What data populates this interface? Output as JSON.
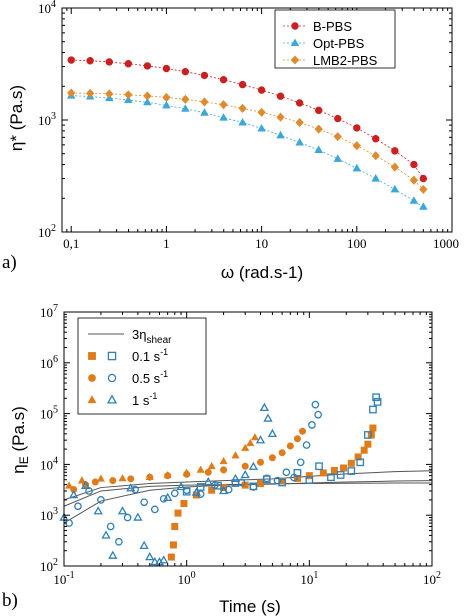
{
  "chart_data": [
    {
      "type": "line",
      "panel_label": "a)",
      "xlabel": "ω (rad.s-1)",
      "ylabel": "η* (Pa.s)",
      "xscale": "log",
      "yscale": "log",
      "xlim": [
        0.08,
        1000
      ],
      "ylim": [
        100,
        10000
      ],
      "xticks": [
        "0,1",
        "1",
        "10",
        "100",
        "1000"
      ],
      "yticks": [
        {
          "base": "10",
          "exp": "2"
        },
        {
          "base": "10",
          "exp": "3"
        },
        {
          "base": "10",
          "exp": "4"
        }
      ],
      "legend_position": "top-right",
      "x": [
        0.1,
        0.158,
        0.251,
        0.398,
        0.631,
        1.0,
        1.58,
        2.51,
        3.98,
        6.31,
        10,
        15.8,
        25.1,
        39.8,
        63.1,
        100,
        158,
        251,
        398,
        500
      ],
      "series": [
        {
          "name": "B-PBS",
          "marker": "circle",
          "color": "#cc1f1f",
          "values": [
            3430,
            3380,
            3300,
            3180,
            3040,
            2880,
            2700,
            2500,
            2290,
            2070,
            1850,
            1630,
            1420,
            1220,
            1030,
            850,
            680,
            530,
            400,
            300
          ]
        },
        {
          "name": "Opt-PBS",
          "marker": "triangle",
          "color": "#3aa8d8",
          "values": [
            1650,
            1620,
            1570,
            1510,
            1440,
            1350,
            1260,
            1160,
            1050,
            950,
            840,
            730,
            630,
            540,
            450,
            370,
            300,
            240,
            190,
            168
          ]
        },
        {
          "name": "LMB2-PBS",
          "marker": "diamond",
          "color": "#e08a2e",
          "values": [
            1740,
            1730,
            1710,
            1680,
            1640,
            1590,
            1530,
            1450,
            1370,
            1270,
            1170,
            1060,
            950,
            830,
            710,
            590,
            480,
            380,
            290,
            240
          ]
        }
      ]
    },
    {
      "type": "scatter",
      "panel_label": "b)",
      "xlabel": "Time (s)",
      "ylabel": {
        "main": "η",
        "sub": "E",
        "rest": " (Pa.s)"
      },
      "xscale": "log",
      "yscale": "log",
      "xlim": [
        0.1,
        100
      ],
      "ylim": [
        100,
        10000000
      ],
      "xticks": [
        {
          "base": "10",
          "exp": "-1"
        },
        {
          "base": "10",
          "exp": "0"
        },
        {
          "base": "10",
          "exp": "1"
        },
        {
          "base": "10",
          "exp": "2"
        }
      ],
      "yticks": [
        {
          "base": "10",
          "exp": "2"
        },
        {
          "base": "10",
          "exp": "3"
        },
        {
          "base": "10",
          "exp": "4"
        },
        {
          "base": "10",
          "exp": "5"
        },
        {
          "base": "10",
          "exp": "6"
        },
        {
          "base": "10",
          "exp": "7"
        }
      ],
      "legend_position": "top-left",
      "legend": [
        {
          "label_main": "3η",
          "label_sub": "shear",
          "kind": "line"
        },
        {
          "label": "0.1 s",
          "sup": "-1",
          "kind": "square",
          "color": "#e07b1a"
        },
        {
          "label": "0.5 s",
          "sup": "-1",
          "kind": "circle",
          "color": "#e07b1a"
        },
        {
          "label": "1 s",
          "sup": "-1",
          "kind": "triangle",
          "color": "#e07b1a"
        }
      ],
      "colors": {
        "filled": "#e07b1a",
        "open": "#2f7fb8",
        "line": "#555555"
      },
      "reference_lines": [
        {
          "name": "3η_shear 0.1 s-1",
          "x": [
            0.1,
            0.2,
            0.5,
            1,
            2,
            5,
            10,
            20,
            50,
            100
          ],
          "y": [
            700,
            1900,
            3100,
            3600,
            3900,
            4100,
            4300,
            4500,
            4700,
            4800
          ]
        },
        {
          "name": "3η_shear 0.5 s-1",
          "x": [
            0.1,
            0.2,
            0.5,
            1,
            2,
            5,
            10,
            20,
            50,
            100
          ],
          "y": [
            1500,
            3000,
            3700,
            3900,
            4000,
            4150,
            4200,
            4250,
            4300,
            4300
          ]
        },
        {
          "name": "3η_shear 1 s-1",
          "x": [
            0.1,
            0.2,
            0.5,
            1,
            2,
            5,
            10,
            20,
            50,
            100
          ],
          "y": [
            2000,
            3500,
            4200,
            4500,
            4800,
            5200,
            5800,
            6500,
            7200,
            7500
          ]
        }
      ],
      "series": [
        {
          "name": "0.1 s-1 filled",
          "marker": "square",
          "fill": true,
          "points": [
            [
              0.75,
              150
            ],
            [
              0.78,
              260
            ],
            [
              0.8,
              600
            ],
            [
              0.85,
              1100
            ],
            [
              0.95,
              1700
            ],
            [
              1.2,
              2500
            ],
            [
              1.6,
              3100
            ],
            [
              2.0,
              3500
            ],
            [
              3.0,
              3900
            ],
            [
              4.0,
              4200
            ],
            [
              6.0,
              4700
            ],
            [
              8.0,
              5300
            ],
            [
              10,
              6000
            ],
            [
              13,
              6800
            ],
            [
              16,
              7600
            ],
            [
              19,
              8500
            ],
            [
              22,
              10500
            ],
            [
              25,
              14000
            ],
            [
              28,
              19000
            ],
            [
              30,
              25000
            ],
            [
              32,
              38000
            ],
            [
              33,
              52000
            ]
          ]
        },
        {
          "name": "0.5 s-1 filled",
          "marker": "circle",
          "fill": true,
          "points": [
            [
              0.12,
              3200
            ],
            [
              0.15,
              4000
            ],
            [
              0.18,
              4500
            ],
            [
              0.25,
              4800
            ],
            [
              0.35,
              5200
            ],
            [
              0.5,
              5600
            ],
            [
              0.7,
              6000
            ],
            [
              1.0,
              6400
            ],
            [
              1.5,
              7000
            ],
            [
              2.0,
              7800
            ],
            [
              3.0,
              9200
            ],
            [
              4.0,
              11000
            ],
            [
              5.0,
              13500
            ],
            [
              6.0,
              17000
            ],
            [
              7.0,
              23000
            ],
            [
              8.0,
              32000
            ],
            [
              8.8,
              45000
            ]
          ]
        },
        {
          "name": "1 s-1 filled",
          "marker": "triangle",
          "fill": true,
          "points": [
            [
              0.11,
              3800
            ],
            [
              0.14,
              4800
            ],
            [
              0.2,
              5200
            ],
            [
              0.3,
              5300
            ],
            [
              0.5,
              5600
            ],
            [
              0.7,
              6100
            ],
            [
              1.0,
              6800
            ],
            [
              1.3,
              7800
            ],
            [
              1.6,
              9200
            ],
            [
              2.0,
              11500
            ],
            [
              2.5,
              15000
            ],
            [
              3.0,
              21000
            ],
            [
              3.3,
              26000
            ],
            [
              3.6,
              34000
            ]
          ]
        },
        {
          "name": "0.1 s-1 open",
          "marker": "square",
          "fill": false,
          "points": [
            [
              1.0,
              2900
            ],
            [
              1.3,
              3600
            ],
            [
              1.8,
              3800
            ],
            [
              2.5,
              4300
            ],
            [
              3.5,
              3700
            ],
            [
              4.5,
              5100
            ],
            [
              6.0,
              4400
            ],
            [
              8.0,
              6800
            ],
            [
              10,
              4900
            ],
            [
              12,
              9200
            ],
            [
              15,
              5600
            ],
            [
              18,
              6200
            ],
            [
              22,
              7400
            ],
            [
              26,
              11000
            ],
            [
              30,
              38000
            ],
            [
              33,
              120000
            ],
            [
              35,
              210000
            ],
            [
              36,
              170000
            ]
          ]
        },
        {
          "name": "0.5 s-1 open",
          "marker": "circle",
          "fill": false,
          "points": [
            [
              0.11,
              700
            ],
            [
              0.13,
              1500
            ],
            [
              0.16,
              3000
            ],
            [
              0.2,
              2000
            ],
            [
              0.24,
              600
            ],
            [
              0.28,
              300
            ],
            [
              0.33,
              900
            ],
            [
              0.38,
              3200
            ],
            [
              0.45,
              1800
            ],
            [
              0.55,
              1300
            ],
            [
              0.65,
              2100
            ],
            [
              0.8,
              2700
            ],
            [
              1.0,
              3100
            ],
            [
              1.3,
              2600
            ],
            [
              1.7,
              3900
            ],
            [
              2.2,
              3200
            ],
            [
              2.8,
              4400
            ],
            [
              3.5,
              3600
            ],
            [
              4.5,
              5300
            ],
            [
              5.5,
              4800
            ],
            [
              6.5,
              7000
            ],
            [
              7.5,
              5500
            ],
            [
              8.5,
              11000
            ],
            [
              9.5,
              24000
            ],
            [
              10.5,
              60000
            ],
            [
              11.2,
              150000
            ],
            [
              11.8,
              95000
            ]
          ]
        },
        {
          "name": "1 s-1 open",
          "marker": "triangle",
          "fill": false,
          "points": [
            [
              0.1,
              900
            ],
            [
              0.12,
              2500
            ],
            [
              0.15,
              3800
            ],
            [
              0.19,
              1200
            ],
            [
              0.22,
              400
            ],
            [
              0.25,
              160
            ],
            [
              0.3,
              1200
            ],
            [
              0.35,
              3400
            ],
            [
              0.4,
              900
            ],
            [
              0.45,
              250
            ],
            [
              0.5,
              150
            ],
            [
              0.55,
              120
            ],
            [
              0.6,
              120
            ],
            [
              0.65,
              130
            ],
            [
              0.7,
              2200
            ],
            [
              0.9,
              3600
            ],
            [
              1.2,
              2800
            ],
            [
              1.5,
              4500
            ],
            [
              2.0,
              3000
            ],
            [
              2.5,
              5200
            ],
            [
              3.0,
              6200
            ],
            [
              3.5,
              9000
            ],
            [
              4.0,
              30000
            ],
            [
              4.3,
              130000
            ],
            [
              4.6,
              80000
            ],
            [
              5.0,
              40000
            ]
          ]
        }
      ]
    }
  ]
}
